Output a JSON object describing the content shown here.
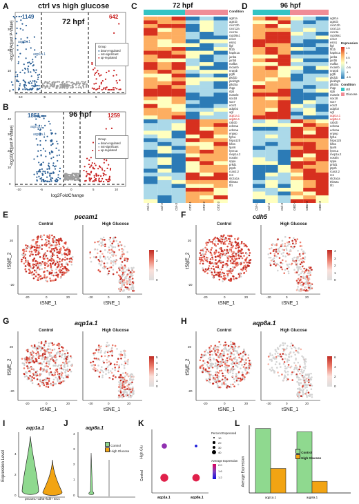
{
  "panel_labels": [
    "A",
    "B",
    "C",
    "D",
    "E",
    "F",
    "G",
    "H",
    "I",
    "J",
    "K",
    "L"
  ],
  "A": {
    "title": "ctrl vs high glucose",
    "stage": "72 hpf",
    "down_count": "1149",
    "up_count": "642",
    "ylabel": "-log10(Adjust P-value)",
    "yticks": [
      "0",
      "10",
      "20",
      "30"
    ],
    "xticks": [
      "-10",
      "-5",
      "0",
      "5"
    ],
    "labels": [
      "aqp8a.1",
      "aqp1a.1"
    ],
    "legend_title": "Group",
    "legend": [
      "down-regulated",
      "not-significant",
      "up-regulated"
    ]
  },
  "B": {
    "stage": "96 hpf",
    "down_count": "1851",
    "up_count": "1259",
    "ylabel": "-log10(Adjust P-value)",
    "xlabel": "log2FoldChange",
    "yticks": [
      "0",
      "10",
      "20",
      "30",
      "40"
    ],
    "xticks": [
      "-10",
      "-5",
      "0",
      "5",
      "10"
    ],
    "labels": [
      "aqp1a.1",
      "aqp8a.1"
    ],
    "legend_title": "Group",
    "legend": [
      "down-regulated",
      "not-significant",
      "up-regulated"
    ]
  },
  "C": {
    "stage": "72 hpf",
    "samples": [
      "Ctrl-1",
      "Ctrl-2",
      "Ctrl-3",
      "GTZ-1",
      "GTZ-2",
      "GTZ-3"
    ],
    "condition_title": "Condition"
  },
  "D": {
    "stage": "96 hpf",
    "samples": [
      "Ctrl-1",
      "Ctrl-2",
      "Ctrl-3",
      "GBD-1",
      "GBD-2",
      "GBD-3"
    ],
    "legend_expression_title": "Expression",
    "legend_expression_ticks": [
      "1.5",
      "1",
      "0.5",
      "0",
      "-0.5",
      "-1",
      "-1.5"
    ],
    "legend_condition_title": "Condition",
    "legend_condition_items": [
      "ctrl",
      "Glucose"
    ]
  },
  "genes": [
    "agtr1a",
    "agtr1b",
    "cxcr12b",
    "cxcr12a",
    "cxcr4a",
    "cyp26a1",
    "ecscr",
    "esm1",
    "flgf",
    "flt1b",
    "hapln1a",
    "junba",
    "junbb",
    "mafba",
    "mcamb",
    "nrarpb",
    "pgfb",
    "pkd1b",
    "plekhg5",
    "plk2ba",
    "rhpp",
    "rtpb",
    "masel3",
    "sox18",
    "sox7",
    "ecsr2",
    "adgrb2",
    "agt",
    "aqp1a.1",
    "aqp8a.1",
    "cab1b",
    "ednraa",
    "ednraa",
    "enpep",
    "fgf1a",
    "hspa12b",
    "kif2a",
    "lpar6",
    "lyve1a",
    "mep1a.2",
    "nostrin",
    "nppa",
    "prkd1",
    "ptprb",
    "rcan2.2",
    "ren",
    "slc2a1a",
    "thbs2a",
    "tll1"
  ],
  "gene_highlight": [
    "aqp1a.1",
    "aqp8a.1"
  ],
  "E": {
    "gene": "pecam1",
    "left": "Control",
    "right": "High Glucose",
    "xlabel": "tSNE_1",
    "ylabel": "tSNE_2",
    "xticks": [
      "-20",
      "0",
      "20"
    ],
    "yticks": [
      "-20",
      "0",
      "20"
    ],
    "scale": [
      "3",
      "2",
      "1",
      "0"
    ]
  },
  "F": {
    "gene": "cdh5",
    "left": "Control",
    "right": "High Glucose",
    "xlabel": "tSNE_1",
    "ylabel": "tSNE_2",
    "xticks": [
      "-20",
      "0",
      "20"
    ],
    "yticks": [
      "-20",
      "0",
      "20"
    ],
    "scale": [
      "4",
      "3",
      "2",
      "1",
      "0"
    ]
  },
  "G": {
    "gene": "aqp1a.1",
    "left": "Control",
    "right": "High Glucose",
    "xlabel": "tSNE_1",
    "ylabel": "tSNE_2",
    "xticks": [
      "-20",
      "0",
      "20"
    ],
    "yticks": [
      "-20",
      "0",
      "20"
    ],
    "scale": [
      "5",
      "4",
      "3",
      "2",
      "1",
      "0"
    ]
  },
  "H": {
    "gene": "aqp8a.1",
    "left": "Control",
    "right": "High Glucose",
    "xlabel": "tSNE_1",
    "ylabel": "tSNE_2",
    "xticks": [
      "-20",
      "0",
      "20"
    ],
    "yticks": [
      "-20",
      "0",
      "20"
    ],
    "scale": [
      "6",
      "4",
      "2",
      "0"
    ]
  },
  "I": {
    "gene": "aqp1a.1",
    "ylabel": "Expression Level",
    "xlabel": "pecam1+cdh5+kdrl+ ECs",
    "yticks": [
      "0",
      "2",
      "4"
    ]
  },
  "J": {
    "gene": "aqp8a.1",
    "legend": [
      "Control",
      "High Glucose"
    ],
    "yticks": [
      "0",
      "1",
      "2",
      "3",
      "4"
    ]
  },
  "K": {
    "rows": [
      "High Glu",
      "Control"
    ],
    "cols": [
      "aqp1a.1",
      "aqp8a.1"
    ],
    "pct_title": "Percent Expressed",
    "pct_ticks": [
      "10",
      "20",
      "30",
      "40"
    ],
    "avg_title": "Average Expression",
    "avg_ticks": [
      "2.0",
      "1.6",
      "1.2"
    ]
  },
  "L": {
    "ylabel": "Average Expression",
    "legend": [
      "Control",
      "High Glucose"
    ]
  },
  "chart_data": [
    {
      "type": "bar",
      "panel": "L",
      "categories": [
        "aqp1a.1",
        "aqp8a.1"
      ],
      "series": [
        {
          "name": "Control",
          "values": [
            1.0,
            0.95
          ]
        },
        {
          "name": "High Glucose",
          "values": [
            0.38,
            0.18
          ]
        }
      ],
      "ylabel": "Average Expression",
      "ylim": [
        0,
        1.05
      ]
    },
    {
      "type": "scatter",
      "panel": "K",
      "x": [
        "aqp1a.1",
        "aqp8a.1"
      ],
      "rows": [
        "High Glu",
        "Control"
      ],
      "percent": [
        [
          20,
          5
        ],
        [
          45,
          40
        ]
      ],
      "avg_expression": [
        [
          1.6,
          1.2
        ],
        [
          2.1,
          2.0
        ]
      ]
    }
  ],
  "colors": {
    "up": "#c81e1e",
    "down": "#2b5f95",
    "ns": "#9e9e9e",
    "control": "#8fd98f",
    "high_glucose": "#f2a413",
    "ctrl_cond": "#33c4c4",
    "glu_cond": "#f08c96"
  }
}
